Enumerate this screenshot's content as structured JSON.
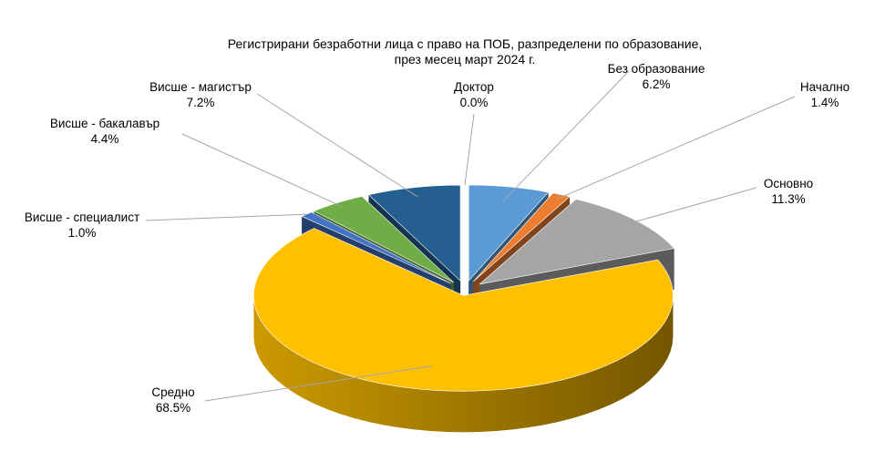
{
  "chart_data": {
    "type": "pie",
    "title_lines": [
      "Регистрирани безработни лица с право на ПОБ, разпределени по образование,",
      "през месец март 2024 г."
    ],
    "slices": [
      {
        "label": "Без образование",
        "value": 6.2,
        "value_text": "6.2%",
        "color": "#5B9BD5"
      },
      {
        "label": "Начално",
        "value": 1.4,
        "value_text": "1.4%",
        "color": "#ED7D31"
      },
      {
        "label": "Основно",
        "value": 11.3,
        "value_text": "11.3%",
        "color": "#A5A5A5"
      },
      {
        "label": "Средно",
        "value": 68.5,
        "value_text": "68.5%",
        "color": "#FFC000"
      },
      {
        "label": "Висше - специалист",
        "value": 1.0,
        "value_text": "1.0%",
        "color": "#4472C4"
      },
      {
        "label": "Висше - бакалавър",
        "value": 4.4,
        "value_text": "4.4%",
        "color": "#70AD47"
      },
      {
        "label": "Висше - магистър",
        "value": 7.2,
        "value_text": "7.2%",
        "color": "#255E91"
      },
      {
        "label": "Доктор",
        "value": 0.0,
        "value_text": "0.0%",
        "color": "#9E480E"
      }
    ],
    "legend": "none",
    "data_labels": "outside with leader lines"
  }
}
